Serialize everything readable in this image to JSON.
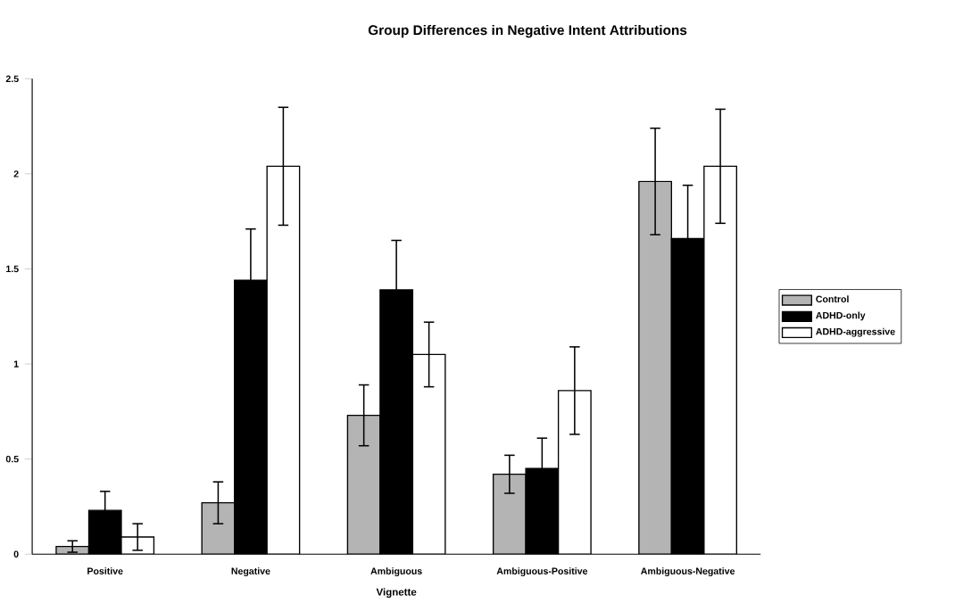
{
  "chart_data": {
    "type": "bar",
    "title": "Group Differences in Negative Intent Attributions",
    "xlabel": "Vignette",
    "categories": [
      "Positive",
      "Negative",
      "Ambiguous",
      "Ambiguous-Positive",
      "Ambiguous-Negative"
    ],
    "series": [
      {
        "name": "Control",
        "color": "#b4b4b4",
        "values": [
          0.04,
          0.27,
          0.73,
          0.42,
          1.96
        ],
        "errors": [
          0.03,
          0.11,
          0.16,
          0.1,
          0.28
        ]
      },
      {
        "name": "ADHD-only",
        "color": "#000000",
        "values": [
          0.23,
          1.44,
          1.39,
          0.45,
          1.66
        ],
        "errors": [
          0.1,
          0.27,
          0.26,
          0.16,
          0.28
        ]
      },
      {
        "name": "ADHD-aggressive",
        "color": "#ffffff",
        "values": [
          0.09,
          2.04,
          1.05,
          0.86,
          2.04
        ],
        "errors": [
          0.07,
          0.31,
          0.17,
          0.23,
          0.3
        ]
      }
    ],
    "ylim": [
      0,
      2.5
    ],
    "yticks": [
      0,
      0.5,
      1,
      1.5,
      2,
      2.5
    ],
    "legend": "right"
  }
}
